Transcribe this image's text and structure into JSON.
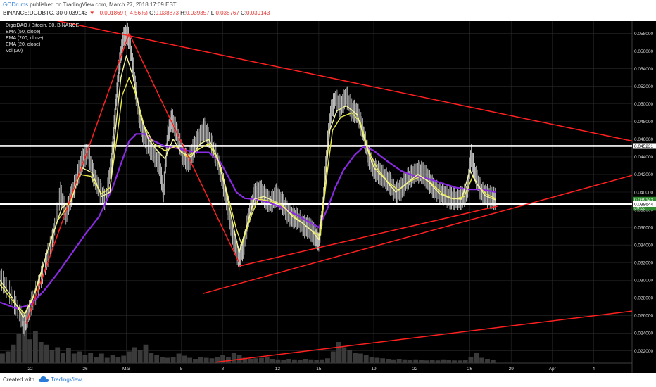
{
  "header": {
    "author": "GODrums",
    "published": "published on TradingView.com, March 27, 2018 17:09 EST",
    "symbol": "BINANCE:DGDBTC, 30",
    "last": "0.039143",
    "change": "−0.001869 (−4.56%)",
    "o_label": "O:",
    "o": "0.038873",
    "h_label": "H:",
    "h": "0.039357",
    "l_label": "L:",
    "l": "0.038767",
    "c_label": "C:",
    "c": "0.039143"
  },
  "legend": {
    "title": "DigixDAO / Bitcoin, 30, BINANCE",
    "items": [
      "EMA (50, close)",
      "EMA (200, close)",
      "EMA (20, close)",
      "Vol (20)"
    ]
  },
  "footer": {
    "created_with": "Created with",
    "brand": "TradingView",
    "logo_icon": "tradingview-cloud-icon"
  },
  "colors": {
    "background": "#000000",
    "grid": "#2a2a2a",
    "candle_up": "#e8e8e8",
    "candle_down": "#c8c8c8",
    "ema50": "#e8e84a",
    "ema200": "#8a2be2",
    "ema20": "#f5f5a0",
    "trendline": "#ff2020",
    "level": "#ffffff",
    "volume": "#3a3a3a",
    "price_tag_green": "#2e8b2e"
  },
  "chart_data": {
    "type": "line",
    "title": "DigixDAO / Bitcoin, 30, BINANCE",
    "xlabel": "",
    "ylabel": "",
    "x_tick_labels": [
      "22",
      "26",
      "Mar",
      "5",
      "8",
      "12",
      "15",
      "19",
      "22",
      "26",
      "29",
      "Apr",
      "4"
    ],
    "x_tick_days": [
      22,
      26,
      29,
      33,
      36,
      40,
      43,
      47,
      50,
      54,
      57,
      60,
      63
    ],
    "x_range_days": [
      19.8,
      65.8
    ],
    "y_tick_labels": [
      "0.022000",
      "0.024000",
      "0.026000",
      "0.028000",
      "0.030000",
      "0.032000",
      "0.034000",
      "0.036000",
      "0.038000",
      "0.040000",
      "0.042000",
      "0.044000",
      "0.046000",
      "0.048000",
      "0.050000",
      "0.052000",
      "0.054000",
      "0.056000",
      "0.058000"
    ],
    "ylim": [
      0.0206,
      0.0594
    ],
    "grid": true,
    "price_tags": [
      {
        "value": 0.045231,
        "label": "0.045231",
        "style": "level"
      },
      {
        "value": 0.039143,
        "label": "0.039143",
        "style": "last"
      },
      {
        "value": 0.0387,
        "label": "39:23",
        "style": "timer"
      },
      {
        "value": 0.038644,
        "label": "0.038644",
        "style": "level"
      }
    ],
    "horizontal_levels": [
      0.045231,
      0.038644
    ],
    "price_path": [
      [
        19.8,
        0.0302
      ],
      [
        20.5,
        0.0285
      ],
      [
        21.2,
        0.0262
      ],
      [
        21.6,
        0.0248
      ],
      [
        22.0,
        0.0268
      ],
      [
        22.6,
        0.0292
      ],
      [
        23.2,
        0.0322
      ],
      [
        23.7,
        0.0352
      ],
      [
        24.2,
        0.0398
      ],
      [
        24.6,
        0.0372
      ],
      [
        25.0,
        0.0395
      ],
      [
        25.4,
        0.0415
      ],
      [
        25.8,
        0.0435
      ],
      [
        26.2,
        0.0445
      ],
      [
        26.6,
        0.0418
      ],
      [
        27.0,
        0.0402
      ],
      [
        27.5,
        0.0388
      ],
      [
        27.9,
        0.0432
      ],
      [
        28.2,
        0.0492
      ],
      [
        28.5,
        0.0545
      ],
      [
        28.8,
        0.0575
      ],
      [
        29.1,
        0.0578
      ],
      [
        29.4,
        0.0552
      ],
      [
        29.7,
        0.051
      ],
      [
        30.1,
        0.047
      ],
      [
        30.5,
        0.0455
      ],
      [
        31.0,
        0.0442
      ],
      [
        31.4,
        0.043
      ],
      [
        31.7,
        0.0398
      ],
      [
        32.0,
        0.0462
      ],
      [
        32.3,
        0.0482
      ],
      [
        32.7,
        0.0465
      ],
      [
        33.1,
        0.0442
      ],
      [
        33.5,
        0.0432
      ],
      [
        33.9,
        0.0448
      ],
      [
        34.3,
        0.0462
      ],
      [
        34.7,
        0.047
      ],
      [
        35.1,
        0.0456
      ],
      [
        35.6,
        0.0438
      ],
      [
        36.0,
        0.0412
      ],
      [
        36.4,
        0.038
      ],
      [
        36.8,
        0.0345
      ],
      [
        37.2,
        0.0322
      ],
      [
        37.5,
        0.0335
      ],
      [
        37.9,
        0.037
      ],
      [
        38.3,
        0.0395
      ],
      [
        38.7,
        0.0402
      ],
      [
        39.1,
        0.0392
      ],
      [
        39.5,
        0.0386
      ],
      [
        39.9,
        0.0395
      ],
      [
        40.3,
        0.0388
      ],
      [
        40.7,
        0.0376
      ],
      [
        41.1,
        0.037
      ],
      [
        41.5,
        0.0368
      ],
      [
        41.9,
        0.036
      ],
      [
        42.3,
        0.0358
      ],
      [
        42.7,
        0.035
      ],
      [
        43.0,
        0.0342
      ],
      [
        43.3,
        0.038
      ],
      [
        43.6,
        0.045
      ],
      [
        43.9,
        0.049
      ],
      [
        44.2,
        0.0505
      ],
      [
        44.6,
        0.0495
      ],
      [
        45.0,
        0.0508
      ],
      [
        45.4,
        0.0492
      ],
      [
        45.8,
        0.0488
      ],
      [
        46.2,
        0.047
      ],
      [
        46.6,
        0.044
      ],
      [
        47.0,
        0.0425
      ],
      [
        47.4,
        0.042
      ],
      [
        47.8,
        0.0415
      ],
      [
        48.2,
        0.0408
      ],
      [
        48.6,
        0.0398
      ],
      [
        49.0,
        0.0402
      ],
      [
        49.4,
        0.0412
      ],
      [
        49.8,
        0.0418
      ],
      [
        50.2,
        0.0422
      ],
      [
        50.6,
        0.042
      ],
      [
        51.0,
        0.0412
      ],
      [
        51.4,
        0.0402
      ],
      [
        51.8,
        0.0398
      ],
      [
        52.2,
        0.0395
      ],
      [
        52.6,
        0.0392
      ],
      [
        53.0,
        0.039
      ],
      [
        53.4,
        0.0392
      ],
      [
        53.8,
        0.0398
      ],
      [
        54.1,
        0.044
      ],
      [
        54.4,
        0.0418
      ],
      [
        54.8,
        0.04
      ],
      [
        55.2,
        0.0395
      ],
      [
        55.6,
        0.0392
      ],
      [
        55.9,
        0.0391
      ]
    ],
    "series": [
      {
        "name": "EMA (200, close)",
        "color": "#8a2be2",
        "values": [
          [
            19.8,
            0.0275
          ],
          [
            21.0,
            0.0268
          ],
          [
            22.0,
            0.0272
          ],
          [
            23.0,
            0.0288
          ],
          [
            24.0,
            0.0308
          ],
          [
            25.0,
            0.033
          ],
          [
            26.0,
            0.0352
          ],
          [
            27.0,
            0.0372
          ],
          [
            28.0,
            0.0405
          ],
          [
            28.6,
            0.0432
          ],
          [
            29.2,
            0.0458
          ],
          [
            29.7,
            0.0466
          ],
          [
            30.3,
            0.0466
          ],
          [
            31.0,
            0.0458
          ],
          [
            31.8,
            0.0452
          ],
          [
            32.6,
            0.045
          ],
          [
            33.4,
            0.0447
          ],
          [
            34.2,
            0.0445
          ],
          [
            35.0,
            0.0445
          ],
          [
            35.8,
            0.0435
          ],
          [
            36.4,
            0.0418
          ],
          [
            37.0,
            0.04
          ],
          [
            37.6,
            0.0393
          ],
          [
            38.4,
            0.0392
          ],
          [
            39.4,
            0.0388
          ],
          [
            40.4,
            0.0382
          ],
          [
            41.4,
            0.0374
          ],
          [
            42.4,
            0.0365
          ],
          [
            43.0,
            0.036
          ],
          [
            43.6,
            0.038
          ],
          [
            44.2,
            0.0405
          ],
          [
            44.8,
            0.0425
          ],
          [
            45.6,
            0.0442
          ],
          [
            46.3,
            0.0452
          ],
          [
            47.0,
            0.0447
          ],
          [
            48.0,
            0.0435
          ],
          [
            49.0,
            0.0424
          ],
          [
            50.0,
            0.0418
          ],
          [
            51.0,
            0.0415
          ],
          [
            52.0,
            0.041
          ],
          [
            53.0,
            0.0405
          ],
          [
            54.0,
            0.0403
          ],
          [
            54.8,
            0.0403
          ],
          [
            55.9,
            0.04
          ]
        ]
      },
      {
        "name": "EMA (50, close)",
        "color": "#e8e84a",
        "values": [
          [
            19.8,
            0.0295
          ],
          [
            20.8,
            0.0275
          ],
          [
            21.6,
            0.0262
          ],
          [
            22.4,
            0.0288
          ],
          [
            23.2,
            0.033
          ],
          [
            24.0,
            0.0368
          ],
          [
            24.8,
            0.0385
          ],
          [
            25.6,
            0.042
          ],
          [
            26.4,
            0.0418
          ],
          [
            27.2,
            0.0398
          ],
          [
            27.8,
            0.0405
          ],
          [
            28.3,
            0.046
          ],
          [
            28.7,
            0.051
          ],
          [
            29.2,
            0.053
          ],
          [
            29.7,
            0.051
          ],
          [
            30.3,
            0.0475
          ],
          [
            31.0,
            0.0455
          ],
          [
            31.8,
            0.0447
          ],
          [
            32.6,
            0.0452
          ],
          [
            33.4,
            0.044
          ],
          [
            34.2,
            0.0448
          ],
          [
            35.0,
            0.0455
          ],
          [
            35.8,
            0.0432
          ],
          [
            36.4,
            0.0395
          ],
          [
            37.0,
            0.0358
          ],
          [
            37.4,
            0.034
          ],
          [
            38.0,
            0.037
          ],
          [
            38.6,
            0.0392
          ],
          [
            39.4,
            0.039
          ],
          [
            40.2,
            0.0386
          ],
          [
            41.0,
            0.0375
          ],
          [
            41.8,
            0.0365
          ],
          [
            42.6,
            0.0355
          ],
          [
            43.1,
            0.035
          ],
          [
            43.6,
            0.042
          ],
          [
            44.0,
            0.047
          ],
          [
            44.6,
            0.0485
          ],
          [
            45.4,
            0.049
          ],
          [
            46.0,
            0.048
          ],
          [
            46.6,
            0.0448
          ],
          [
            47.2,
            0.0428
          ],
          [
            48.0,
            0.0412
          ],
          [
            48.8,
            0.0402
          ],
          [
            49.6,
            0.0412
          ],
          [
            50.4,
            0.0418
          ],
          [
            51.2,
            0.041
          ],
          [
            52.0,
            0.0398
          ],
          [
            52.8,
            0.0392
          ],
          [
            53.6,
            0.0395
          ],
          [
            54.2,
            0.0418
          ],
          [
            54.7,
            0.0405
          ],
          [
            55.2,
            0.0398
          ],
          [
            55.9,
            0.0392
          ]
        ]
      },
      {
        "name": "EMA (20, close)",
        "color": "#f5f5a0",
        "values": [
          [
            19.8,
            0.03
          ],
          [
            20.7,
            0.028
          ],
          [
            21.5,
            0.0258
          ],
          [
            22.2,
            0.028
          ],
          [
            22.9,
            0.0315
          ],
          [
            23.6,
            0.035
          ],
          [
            24.3,
            0.0382
          ],
          [
            25.0,
            0.039
          ],
          [
            25.7,
            0.0428
          ],
          [
            26.5,
            0.0422
          ],
          [
            27.2,
            0.0395
          ],
          [
            27.8,
            0.04
          ],
          [
            28.2,
            0.047
          ],
          [
            28.6,
            0.053
          ],
          [
            29.0,
            0.0555
          ],
          [
            29.5,
            0.053
          ],
          [
            30.0,
            0.0488
          ],
          [
            30.6,
            0.046
          ],
          [
            31.2,
            0.0448
          ],
          [
            31.8,
            0.0438
          ],
          [
            32.4,
            0.046
          ],
          [
            33.0,
            0.0445
          ],
          [
            33.7,
            0.044
          ],
          [
            34.4,
            0.0455
          ],
          [
            35.0,
            0.046
          ],
          [
            35.6,
            0.044
          ],
          [
            36.2,
            0.0405
          ],
          [
            36.8,
            0.036
          ],
          [
            37.2,
            0.0332
          ],
          [
            37.7,
            0.0358
          ],
          [
            38.3,
            0.0392
          ],
          [
            39.0,
            0.0395
          ],
          [
            39.7,
            0.039
          ],
          [
            40.4,
            0.0385
          ],
          [
            41.1,
            0.0372
          ],
          [
            41.8,
            0.0365
          ],
          [
            42.5,
            0.0356
          ],
          [
            43.0,
            0.0346
          ],
          [
            43.4,
            0.04
          ],
          [
            43.8,
            0.047
          ],
          [
            44.3,
            0.0492
          ],
          [
            45.0,
            0.0498
          ],
          [
            45.8,
            0.0488
          ],
          [
            46.4,
            0.0455
          ],
          [
            47.0,
            0.0428
          ],
          [
            47.8,
            0.0415
          ],
          [
            48.6,
            0.04
          ],
          [
            49.4,
            0.041
          ],
          [
            50.2,
            0.042
          ],
          [
            51.0,
            0.0412
          ],
          [
            51.8,
            0.0398
          ],
          [
            52.6,
            0.0393
          ],
          [
            53.4,
            0.0392
          ],
          [
            54.0,
            0.0425
          ],
          [
            54.5,
            0.041
          ],
          [
            55.1,
            0.0396
          ],
          [
            55.9,
            0.0391
          ]
        ]
      }
    ],
    "trendlines": [
      {
        "from": [
          21.7,
          0.0251
        ],
        "to": [
          29.2,
          0.058
        ]
      },
      {
        "from": [
          29.2,
          0.058
        ],
        "to": [
          37.2,
          0.032
        ]
      },
      {
        "from": [
          23.8,
          0.0595
        ],
        "to": [
          65.8,
          0.0458
        ]
      },
      {
        "from": [
          34.6,
          0.0285
        ],
        "to": [
          65.8,
          0.0419
        ]
      },
      {
        "from": [
          37.2,
          0.0316
        ],
        "to": [
          56.0,
          0.0384
        ]
      },
      {
        "from": [
          35.5,
          0.0207
        ],
        "to": [
          65.8,
          0.0265
        ]
      }
    ],
    "volume_bars_relative": [
      0.18,
      0.22,
      0.35,
      0.55,
      0.8,
      0.45,
      0.6,
      0.4,
      0.35,
      0.25,
      0.3,
      0.2,
      0.28,
      0.18,
      0.22,
      0.15,
      0.2,
      0.12,
      0.18,
      0.1,
      0.15,
      0.12,
      0.14,
      0.22,
      0.3,
      0.25,
      0.35,
      0.2,
      0.15,
      0.12,
      0.1,
      0.12,
      0.18,
      0.14,
      0.1,
      0.08,
      0.12,
      0.1,
      0.09,
      0.12,
      0.15,
      0.12,
      0.2,
      0.15,
      0.1,
      0.08,
      0.09,
      0.1,
      0.12,
      0.08,
      0.07,
      0.06,
      0.08,
      0.07,
      0.06,
      0.08,
      0.07,
      0.06,
      0.07,
      0.09,
      0.22,
      0.4,
      0.3,
      0.25,
      0.2,
      0.18,
      0.15,
      0.12,
      0.1,
      0.09,
      0.08,
      0.07,
      0.08,
      0.07,
      0.06,
      0.07,
      0.06,
      0.05,
      0.06,
      0.05,
      0.07,
      0.06,
      0.05,
      0.05,
      0.06,
      0.12,
      0.2,
      0.1,
      0.08,
      0.06
    ]
  }
}
